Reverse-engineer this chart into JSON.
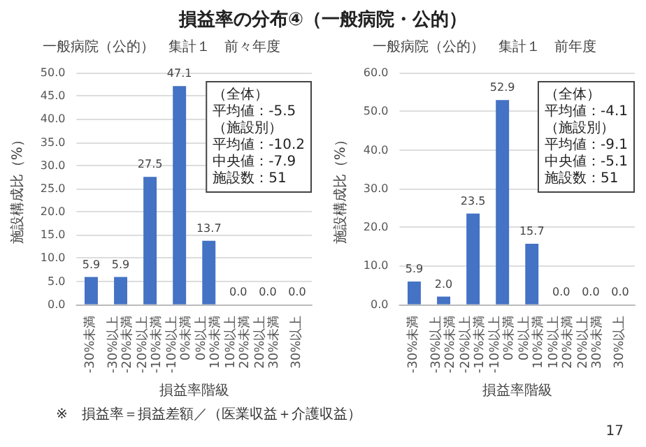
{
  "chart_data": [
    {
      "type": "other",
      "title": "損益率の分布④（一般病院・公的）",
      "annotations": [
        "※　損益率＝損益差額／（医業収益＋介護収益）",
        "17"
      ]
    },
    {
      "type": "bar",
      "title": "一般病院（公的）　集計１　前々年度",
      "xlabel": "損益率階級",
      "ylabel": "施設構成比（%）",
      "categories": [
        "-30%未満",
        "-30%以上\n-20%未満",
        "-20%以上\n-10%未満",
        "-10%以上\n0%未満",
        "0%以上\n10%未満",
        "10%以上\n20%未満",
        "20%以上\n30%未満",
        "30%以上"
      ],
      "values": [
        5.9,
        5.9,
        27.5,
        47.1,
        13.7,
        0,
        0,
        0
      ],
      "value_labels": [
        "5.9",
        "5.9",
        "27.5",
        "47.1",
        "13.7",
        "0.0",
        "0.0",
        "0.0"
      ],
      "color": "#4472c4",
      "ylim": [
        0,
        50
      ],
      "yticks": [
        {
          "value": 0,
          "label": "0.0"
        },
        {
          "value": 5,
          "label": "5.0"
        },
        {
          "value": 10,
          "label": "10.0"
        },
        {
          "value": 15,
          "label": "15.0"
        },
        {
          "value": 20,
          "label": "20.0"
        },
        {
          "value": 25,
          "label": "25.0"
        },
        {
          "value": 30,
          "label": "30.0"
        },
        {
          "value": 35,
          "label": "35.0"
        },
        {
          "value": 40,
          "label": "40.0"
        },
        {
          "value": 45,
          "label": "45.0"
        },
        {
          "value": 50,
          "label": "50.0"
        }
      ],
      "grid": "y",
      "annotations": [
        "（全体）平均値：-5.5",
        "（施設別）平均値：-10.2",
        "中央値：-7.9",
        "施設数：51"
      ]
    },
    {
      "type": "bar",
      "title": "一般病院（公的）　集計１　前年度",
      "xlabel": "損益率階級",
      "ylabel": "施設構成比（%）",
      "categories": [
        "-30%未満",
        "-30%以上\n-20%未満",
        "-20%以上\n-10%未満",
        "-10%以上\n0%未満",
        "0%以上\n10%未満",
        "10%以上\n20%未満",
        "20%以上\n30%未満",
        "30%以上"
      ],
      "values": [
        5.9,
        2.0,
        23.5,
        52.9,
        15.7,
        0,
        0,
        0
      ],
      "value_labels": [
        "5.9",
        "2.0",
        "23.5",
        "52.9",
        "15.7",
        "0.0",
        "0.0",
        "0.0"
      ],
      "color": "#4472c4",
      "ylim": [
        0,
        60
      ],
      "yticks": [
        {
          "value": 0,
          "label": "0.0"
        },
        {
          "value": 10,
          "label": "10.0"
        },
        {
          "value": 20,
          "label": "20.0"
        },
        {
          "value": 30,
          "label": "30.0"
        },
        {
          "value": 40,
          "label": "40.0"
        },
        {
          "value": 50,
          "label": "50.0"
        },
        {
          "value": 60,
          "label": "60.0"
        }
      ],
      "grid": "y",
      "annotations": [
        "（全体）平均値：-4.1",
        "（施設別）平均値：-9.1",
        "中央値：-5.1",
        "施設数：51"
      ]
    }
  ]
}
